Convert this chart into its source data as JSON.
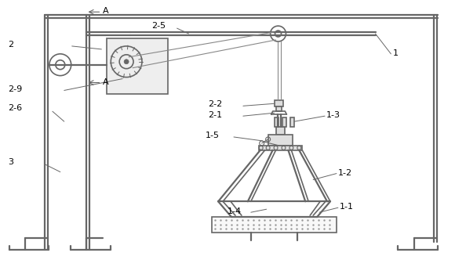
{
  "line_color": "#666666",
  "thin_color": "#888888",
  "lw": 1.2,
  "tlw": 1.6,
  "fs": 8,
  "labels": {
    "A": "A",
    "1": "1",
    "2": "2",
    "3": "3",
    "2-1": "2-1",
    "2-2": "2-2",
    "2-5": "2-5",
    "2-6": "2-6",
    "2-9": "2-9",
    "1-1": "1-1",
    "1-2": "1-2",
    "1-3": "1-3",
    "1-4": "1-4",
    "1-5": "1-5"
  }
}
